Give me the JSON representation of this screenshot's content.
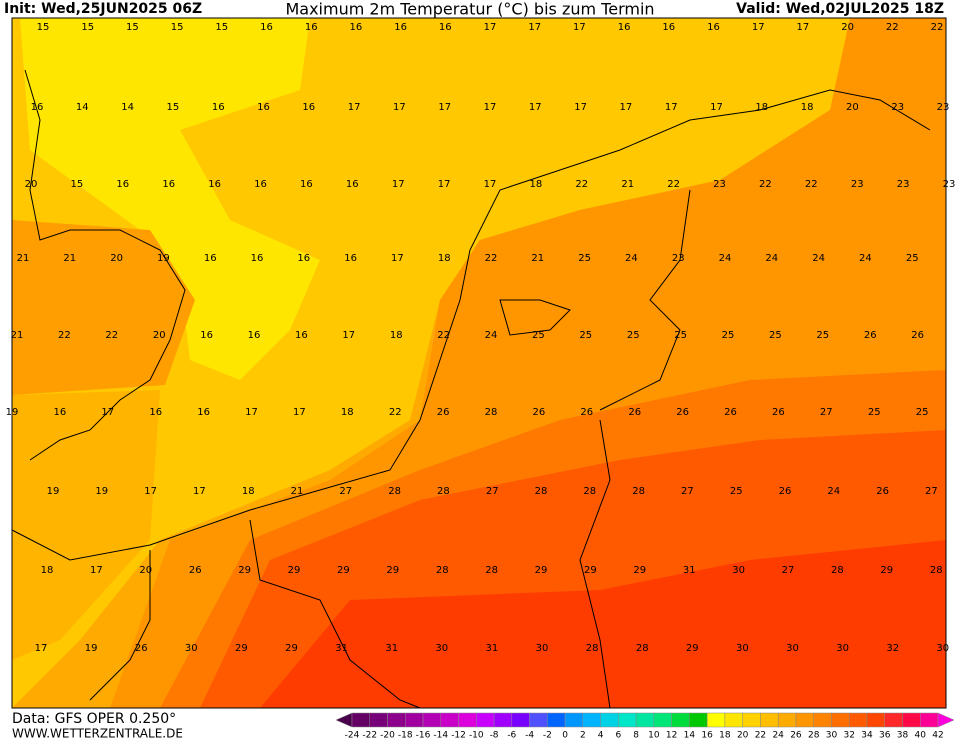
{
  "header": {
    "init": "Init: Wed,25JUN2025 06Z",
    "title": "Maximum 2m Temperatur (°C) bis zum Termin",
    "valid": "Valid: Wed,02JUL2025 18Z"
  },
  "footer": {
    "data": "Data: GFS OPER 0.250°",
    "site": "WWW.WETTERZENTRALE.DE"
  },
  "map_labels": {
    "rows": [
      [
        15,
        15,
        15,
        15,
        15,
        16,
        16,
        16,
        16,
        16,
        17,
        17,
        17,
        16,
        16,
        16,
        17,
        17,
        20,
        22,
        22
      ],
      [
        16,
        14,
        14,
        15,
        16,
        16,
        16,
        17,
        17,
        17,
        17,
        17,
        17,
        17,
        17,
        17,
        18,
        18,
        20,
        23,
        23
      ],
      [
        20,
        15,
        16,
        16,
        16,
        16,
        16,
        16,
        17,
        17,
        17,
        18,
        22,
        21,
        22,
        23,
        22,
        22,
        23,
        23,
        23
      ],
      [
        21,
        21,
        20,
        19,
        16,
        16,
        16,
        16,
        17,
        18,
        22,
        21,
        25,
        24,
        23,
        24,
        24,
        24,
        24,
        25
      ],
      [
        21,
        22,
        22,
        20,
        16,
        16,
        16,
        17,
        18,
        22,
        24,
        25,
        25,
        25,
        25,
        25,
        25,
        25,
        26,
        26
      ],
      [
        19,
        16,
        17,
        16,
        16,
        17,
        17,
        18,
        22,
        26,
        28,
        26,
        26,
        26,
        26,
        26,
        26,
        27,
        25,
        25
      ],
      [
        19,
        19,
        17,
        17,
        18,
        21,
        27,
        28,
        28,
        27,
        28,
        28,
        28,
        27,
        25,
        26,
        24,
        26,
        27
      ],
      [
        18,
        17,
        20,
        26,
        29,
        29,
        29,
        29,
        28,
        28,
        29,
        29,
        29,
        31,
        30,
        27,
        28,
        29,
        28
      ],
      [
        17,
        19,
        26,
        30,
        29,
        29,
        31,
        31,
        30,
        31,
        30,
        28,
        28,
        29,
        30,
        30,
        30,
        32,
        30
      ]
    ]
  },
  "legend": {
    "labels": [
      -24,
      -22,
      -20,
      -18,
      -16,
      -14,
      -12,
      -10,
      -8,
      -6,
      -4,
      -2,
      0,
      2,
      4,
      6,
      8,
      10,
      12,
      14,
      16,
      18,
      20,
      22,
      24,
      26,
      28,
      30,
      32,
      34,
      36,
      38,
      40,
      42
    ],
    "colors": [
      "#4b004b",
      "#640064",
      "#780078",
      "#8c008c",
      "#a000a0",
      "#b400b4",
      "#c800c8",
      "#dc00dc",
      "#c800ff",
      "#a000ff",
      "#7800ff",
      "#5050ff",
      "#0064ff",
      "#0096ff",
      "#00b4ff",
      "#00d2e6",
      "#00e6c8",
      "#00e6a0",
      "#00e678",
      "#00dc3c",
      "#00c800",
      "#ffff00",
      "#ffe600",
      "#ffd200",
      "#ffbe00",
      "#ffaa00",
      "#ff9600",
      "#ff8200",
      "#ff6e00",
      "#ff5a00",
      "#ff4600",
      "#ff2828",
      "#ff0a46",
      "#ff0096",
      "#ff00dc"
    ]
  }
}
